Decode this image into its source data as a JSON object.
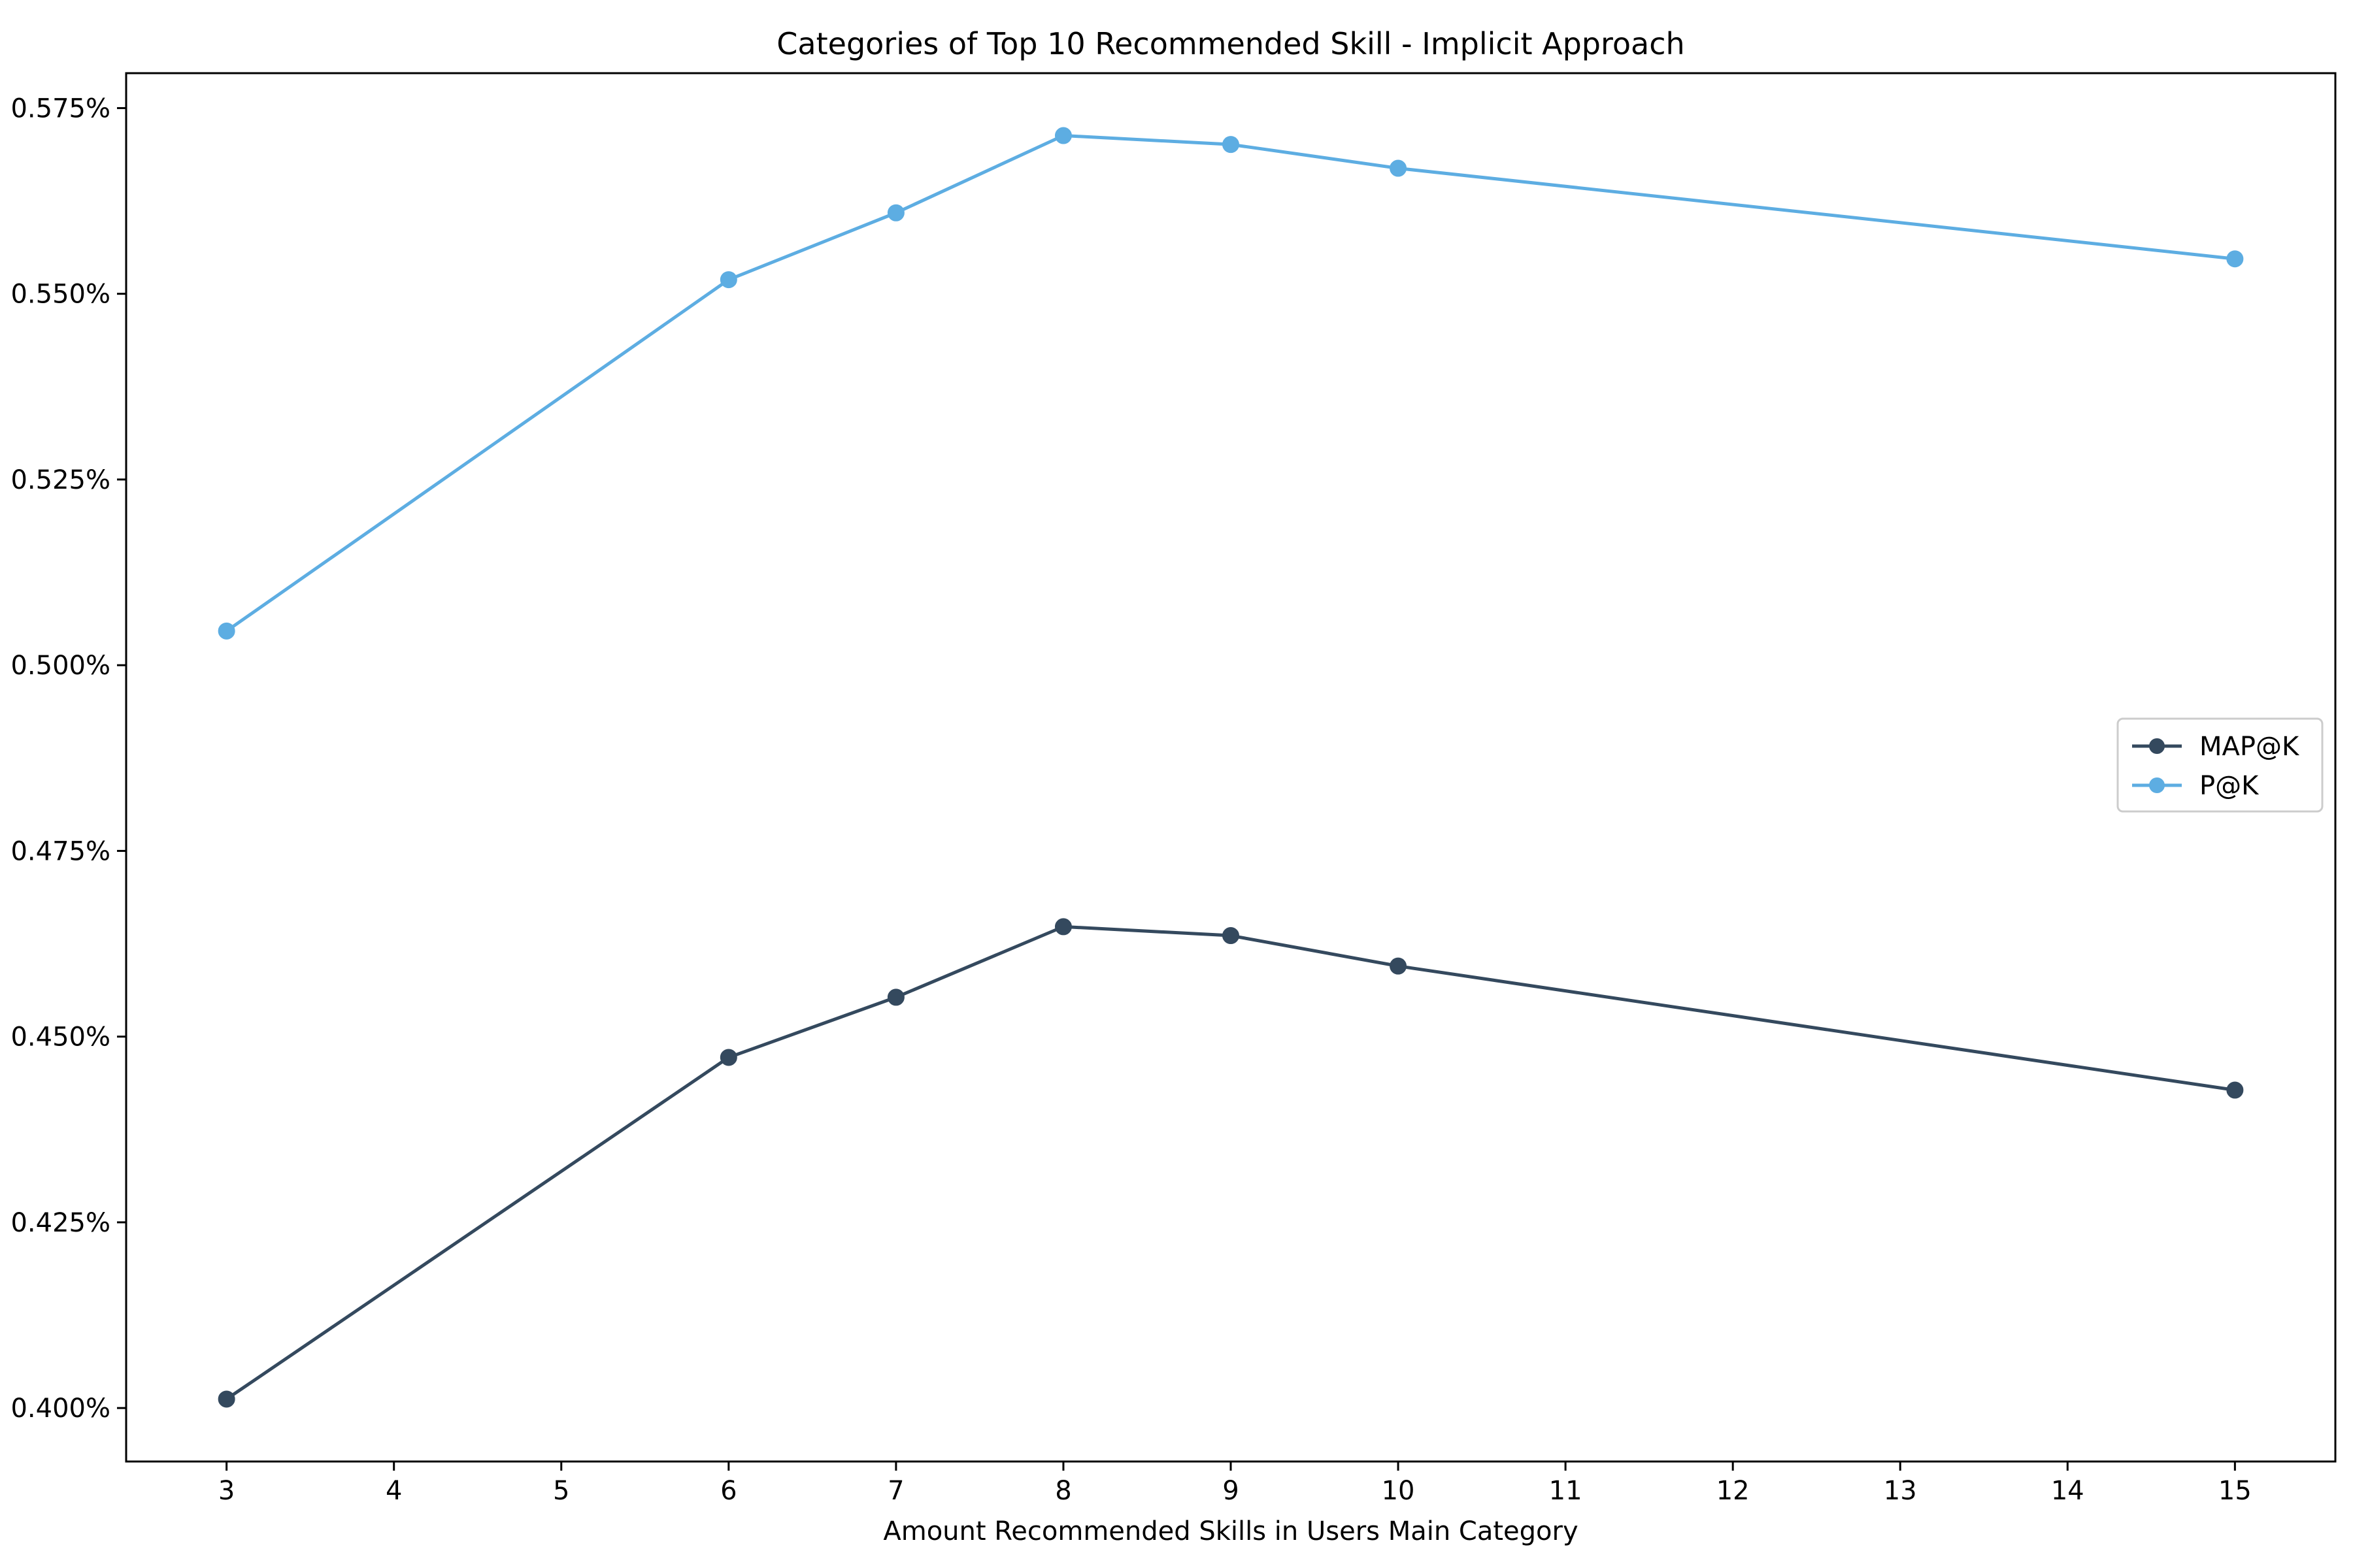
{
  "chart_data": {
    "type": "line",
    "title": "Categories of Top 10 Recommended Skill - Implicit Approach",
    "xlabel": "Amount Recommended Skills in Users Main Category",
    "ylabel": "",
    "xlim": [
      2.4,
      15.6
    ],
    "ylim": [
      0.3928,
      0.5797
    ],
    "x_ticks": [
      3,
      4,
      5,
      6,
      7,
      8,
      9,
      10,
      11,
      12,
      13,
      14,
      15
    ],
    "y_ticks": [
      0.4,
      0.425,
      0.45,
      0.475,
      0.5,
      0.525,
      0.55,
      0.575
    ],
    "y_tick_labels": [
      "0.400%",
      "0.425%",
      "0.450%",
      "0.475%",
      "0.500%",
      "0.525%",
      "0.550%",
      "0.575%"
    ],
    "x": [
      3,
      6,
      7,
      8,
      9,
      10,
      15
    ],
    "series": [
      {
        "name": "MAP@K",
        "color": "#34495e",
        "values": [
          0.4012,
          0.4472,
          0.4553,
          0.4648,
          0.4636,
          0.4595,
          0.4428
        ]
      },
      {
        "name": "P@K",
        "color": "#5dade2",
        "values": [
          0.5046,
          0.5519,
          0.5609,
          0.5713,
          0.5701,
          0.5669,
          0.5547
        ]
      }
    ],
    "legend_position": "center-right",
    "grid": false
  }
}
